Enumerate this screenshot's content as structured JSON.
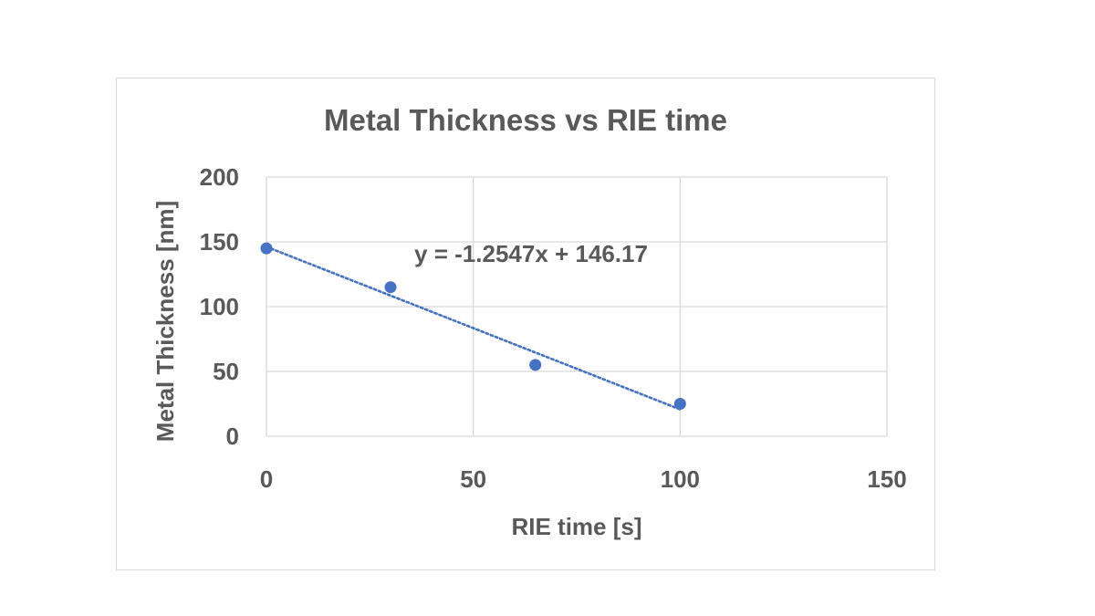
{
  "chart_data": {
    "type": "scatter",
    "title": "Metal Thickness vs RIE time",
    "xlabel": "RIE time [s]",
    "ylabel": "Metal Thickness [nm]",
    "xlim": [
      0,
      150
    ],
    "ylim": [
      0,
      200
    ],
    "xticks": [
      0,
      50,
      100,
      150
    ],
    "yticks": [
      0,
      50,
      100,
      150,
      200
    ],
    "grid": true,
    "legend": "none",
    "series": [
      {
        "x": [
          0,
          30,
          65,
          100
        ],
        "y": [
          145,
          115,
          55,
          25
        ],
        "color": "#4472c4"
      }
    ],
    "trendline": {
      "type": "linear",
      "slope": -1.2547,
      "intercept": 146.17,
      "x_range": [
        0,
        100
      ],
      "style": "dotted",
      "color": "#4472c4",
      "equation_label": "y = -1.2547x + 146.17"
    }
  }
}
